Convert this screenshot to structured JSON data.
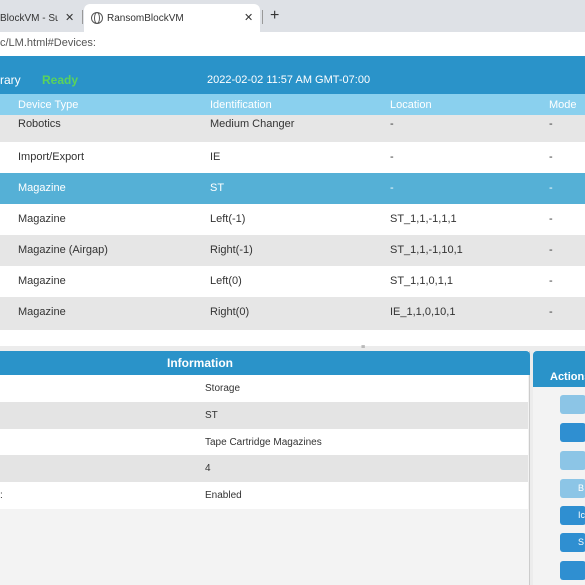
{
  "browser": {
    "tabs": [
      {
        "title": "BlockVM - Sur"
      },
      {
        "title": "RansomBlockVM"
      }
    ],
    "url": "c/LM.html#Devices:"
  },
  "status": {
    "title": "rary",
    "state": "Ready",
    "datetime": "2022-02-02 11:57 AM GMT-07:00"
  },
  "devices": {
    "columns": [
      "Device Type",
      "Identification",
      "Location",
      "Mode"
    ],
    "rows": [
      [
        "Robotics",
        "Medium Changer",
        "-",
        "-"
      ],
      [
        "Import/Export",
        "IE",
        "-",
        "-"
      ],
      [
        "Magazine",
        "ST",
        "-",
        "-"
      ],
      [
        "Magazine",
        "Left(-1)",
        "ST_1,1,-1,1,1",
        "-"
      ],
      [
        "Magazine (Airgap)",
        "Right(-1)",
        "ST_1,1,-1,10,1",
        "-"
      ],
      [
        "Magazine",
        "Left(0)",
        "ST_1,1,0,1,1",
        "-"
      ],
      [
        "Magazine",
        "Right(0)",
        "IE_1,1,0,10,1",
        "-"
      ]
    ],
    "selected_index": 2
  },
  "information": {
    "title": "Information",
    "rows": [
      {
        "label": "",
        "value": "Storage"
      },
      {
        "label": "",
        "value": "ST"
      },
      {
        "label": "",
        "value": "Tape Cartridge Magazines"
      },
      {
        "label": "",
        "value": "4"
      },
      {
        "label": ":",
        "value": "Enabled"
      }
    ]
  },
  "actions": {
    "title": "Actions",
    "buttons": [
      "",
      "",
      "",
      "B",
      "Ic",
      "S",
      ""
    ]
  },
  "colors": {
    "header_blue": "#2a93c9",
    "table_header": "#8ad0ee",
    "selected_row": "#55b0d6",
    "ready_green": "#5bd35b"
  }
}
